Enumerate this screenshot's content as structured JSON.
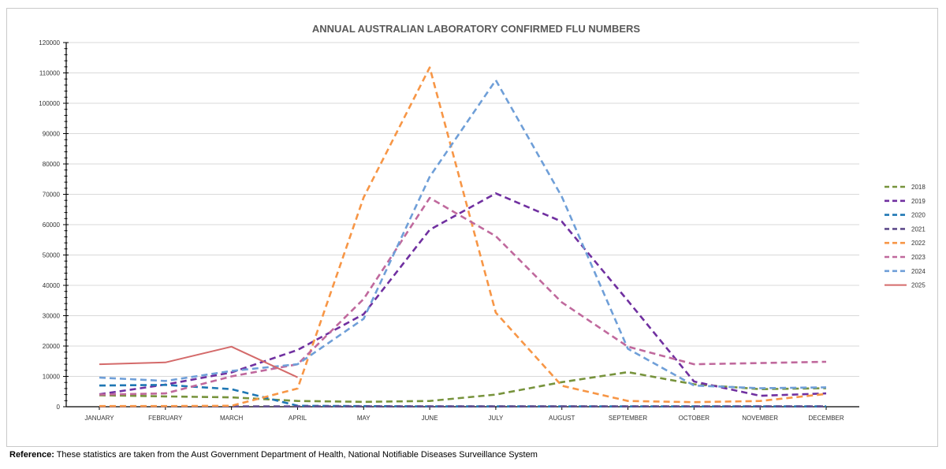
{
  "chart_data": {
    "type": "line",
    "title": "ANNUAL AUSTRALIAN LABORATORY CONFIRMED FLU NUMBERS",
    "xlabel": "",
    "ylabel": "",
    "ylim": [
      0,
      120000
    ],
    "yticks": [
      0,
      10000,
      20000,
      30000,
      40000,
      50000,
      60000,
      70000,
      80000,
      90000,
      100000,
      110000,
      120000
    ],
    "grid": true,
    "legend_position": "right",
    "categories": [
      "JANUARY",
      "FEBRUARY",
      "MARCH",
      "APRIL",
      "MAY",
      "JUNE",
      "JULY",
      "AUGUST",
      "SEPTEMBER",
      "OCTOBER",
      "NOVEMBER",
      "DECEMBER"
    ],
    "series": [
      {
        "name": "2018",
        "color": "#77933c",
        "dashed": true,
        "values": [
          3800,
          3400,
          3100,
          1900,
          1600,
          1900,
          4000,
          8100,
          11400,
          7400,
          5800,
          6100
        ]
      },
      {
        "name": "2019",
        "color": "#7030a0",
        "dashed": true,
        "values": [
          4100,
          7300,
          11300,
          18700,
          30500,
          58300,
          70300,
          61000,
          34900,
          8300,
          3600,
          4400
        ]
      },
      {
        "name": "2020",
        "color": "#1f77b4",
        "dashed": true,
        "values": [
          7000,
          7200,
          5800,
          300,
          200,
          100,
          100,
          100,
          100,
          100,
          100,
          100
        ]
      },
      {
        "name": "2021",
        "color": "#5f4b8b",
        "dashed": true,
        "values": [
          100,
          100,
          100,
          100,
          100,
          100,
          100,
          100,
          100,
          100,
          100,
          100
        ]
      },
      {
        "name": "2022",
        "color": "#f79646",
        "dashed": true,
        "values": [
          200,
          200,
          300,
          6000,
          69000,
          111800,
          31000,
          6900,
          1900,
          1500,
          1900,
          4200
        ]
      },
      {
        "name": "2023",
        "color": "#c0699d",
        "dashed": true,
        "values": [
          4000,
          4400,
          10000,
          14000,
          35500,
          68800,
          56200,
          34400,
          19800,
          14000,
          14400,
          14800
        ]
      },
      {
        "name": "2024",
        "color": "#6f9fd8",
        "dashed": true,
        "values": [
          9600,
          8500,
          11800,
          14000,
          29000,
          75800,
          107600,
          69200,
          19100,
          7000,
          6100,
          6400
        ]
      },
      {
        "name": "2025",
        "color": "#d46a6a",
        "dashed": false,
        "values": [
          14000,
          14600,
          19800,
          9700,
          null,
          null,
          null,
          null,
          null,
          null,
          null,
          null
        ]
      }
    ]
  },
  "footer": {
    "reference_label": "Reference:",
    "reference_text": " These statistics are taken from the Aust Government Department of Health, National Notifiable Diseases Surveillance System"
  }
}
